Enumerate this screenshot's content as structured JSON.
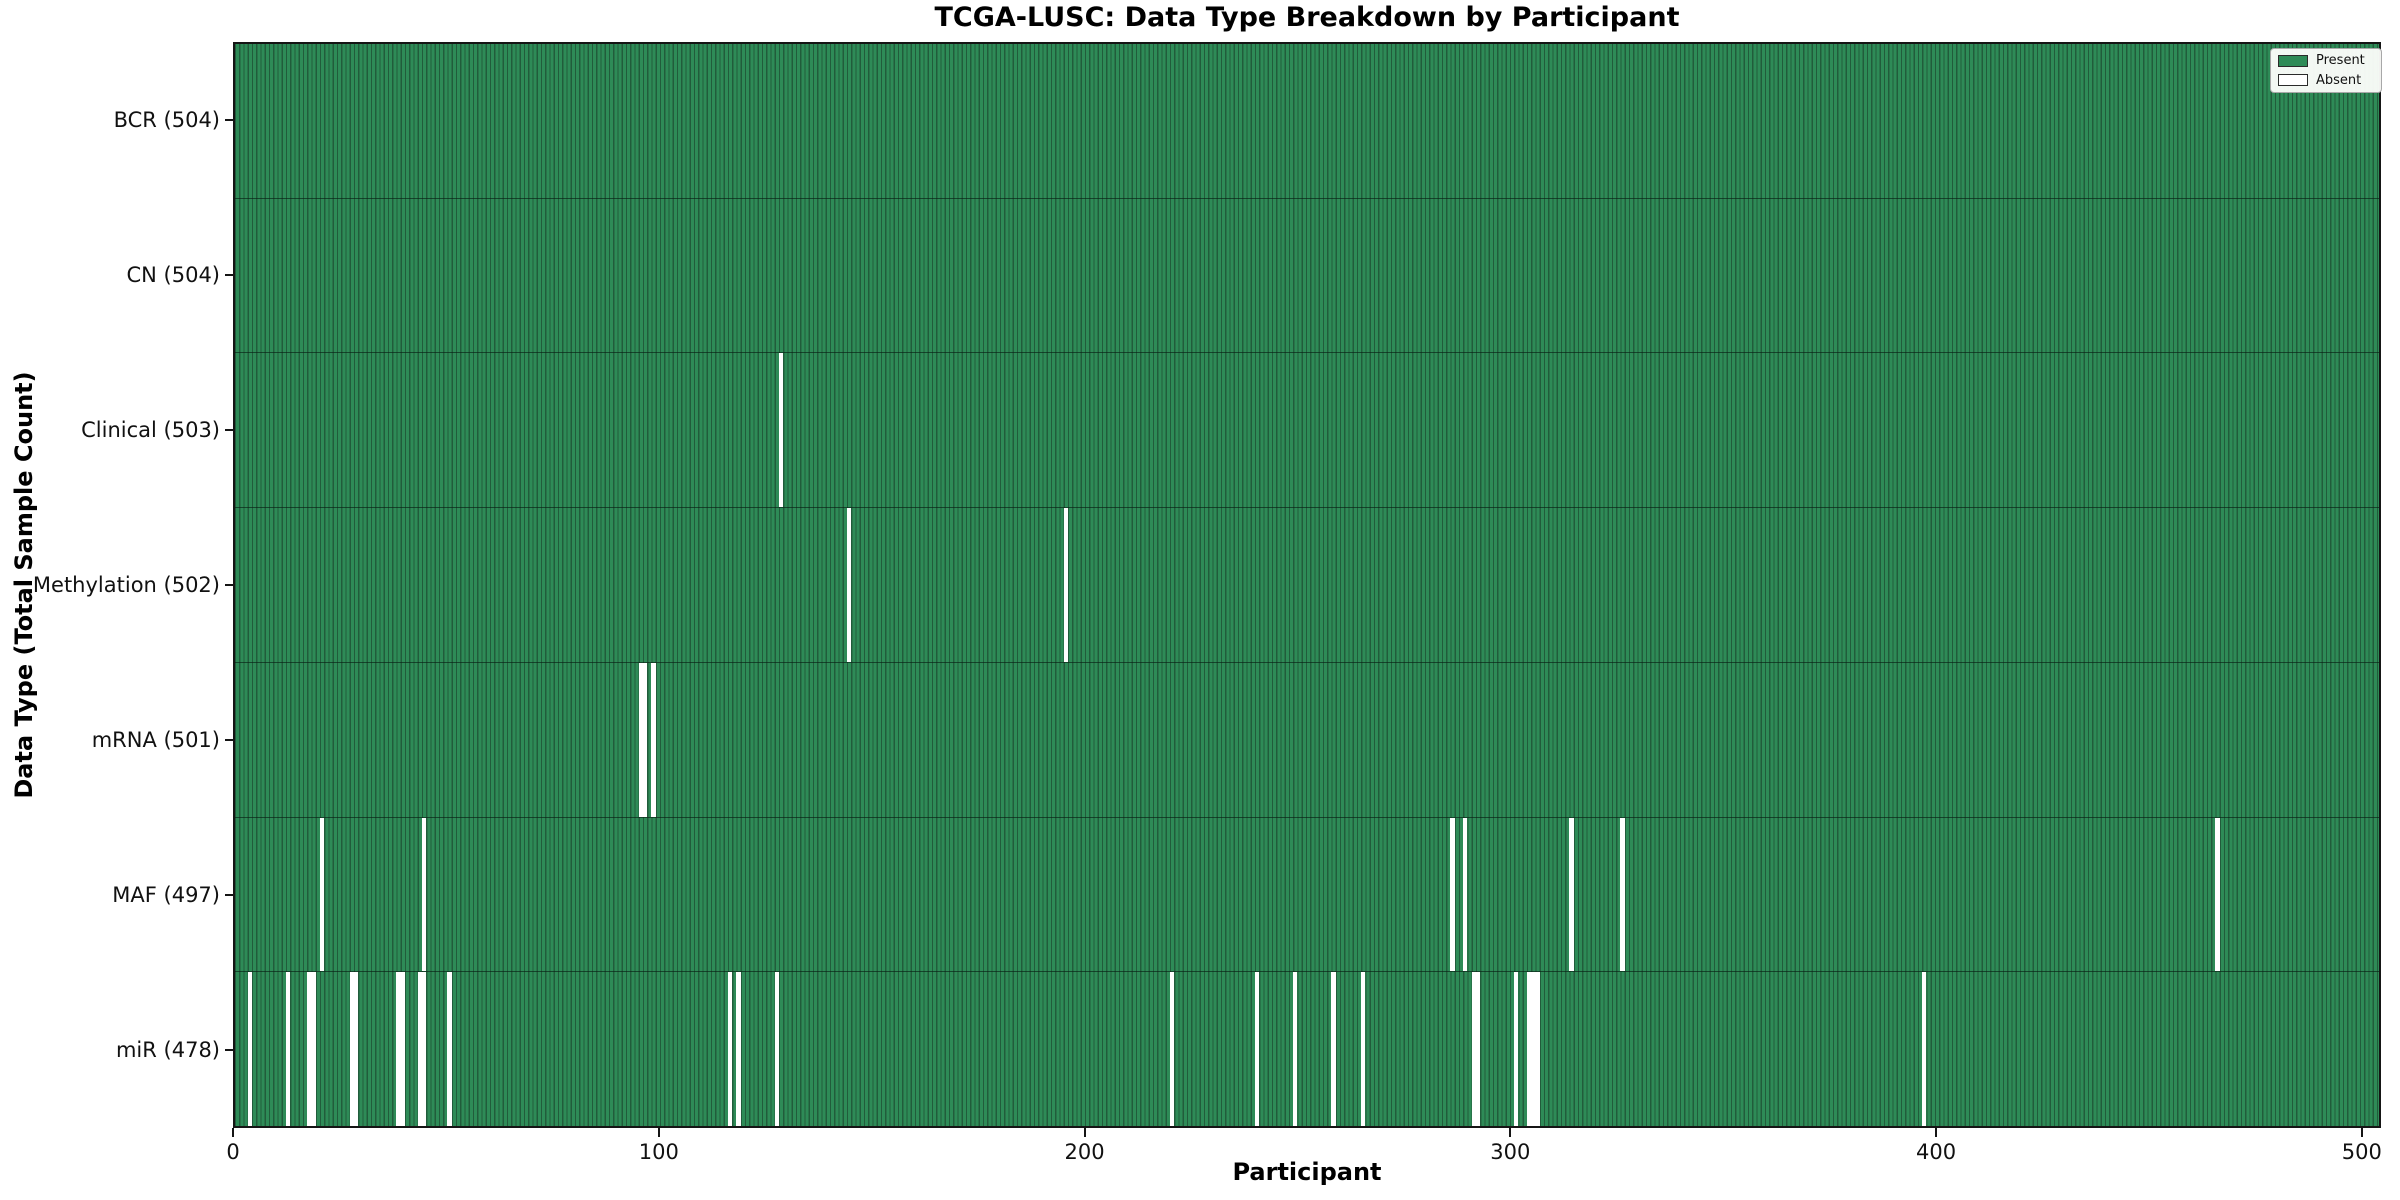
{
  "title": "TCGA-LUSC: Data Type Breakdown by Participant",
  "axes": {
    "x_label": "Participant",
    "y_label": "Data Type (Total Sample Count)"
  },
  "legend": {
    "items": [
      {
        "label": "Present",
        "color": "#2e8b57"
      },
      {
        "label": "Absent",
        "color": "#ffffff"
      }
    ]
  },
  "colors": {
    "present_fill": "#2e8b57",
    "bar_edge": "#215c3b",
    "spine": "#151515",
    "background": "#ffffff"
  },
  "chart_data": {
    "type": "heatmap",
    "description": "Presence/absence of each data type per participant; green bar = present, white gap = absent",
    "total_participants": 504,
    "x_max": 504.5,
    "x_ticks": [
      0,
      100,
      200,
      300,
      400,
      500
    ],
    "legend_position": "upper right",
    "rows": [
      {
        "name": "BCR",
        "label": "BCR (504)",
        "count": 504,
        "absent": []
      },
      {
        "name": "CN",
        "label": "CN (504)",
        "count": 504,
        "absent": []
      },
      {
        "name": "Clinical",
        "label": "Clinical (503)",
        "count": 503,
        "absent": [
          129
        ]
      },
      {
        "name": "Methylation",
        "label": "Methylation (502)",
        "count": 502,
        "absent": [
          145,
          196
        ]
      },
      {
        "name": "mRNA",
        "label": "mRNA (501)",
        "count": 501,
        "absent": [
          96,
          97,
          99
        ]
      },
      {
        "name": "MAF",
        "label": "MAF (497)",
        "count": 497,
        "absent": [
          21,
          45,
          287,
          290,
          315,
          327,
          467
        ]
      },
      {
        "name": "miR",
        "label": "miR (478)",
        "count": 478,
        "absent": [
          4,
          13,
          18,
          19,
          28,
          29,
          39,
          40,
          44,
          45,
          51,
          117,
          119,
          128,
          221,
          241,
          250,
          259,
          266,
          292,
          293,
          302,
          305,
          306,
          307,
          398
        ]
      }
    ]
  }
}
